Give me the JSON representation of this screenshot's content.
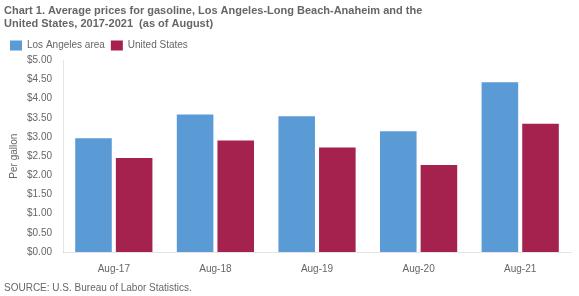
{
  "chart_data": {
    "type": "bar",
    "title": [
      "Chart 1. Average prices for gasoline, Los Angeles-Long Beach-Anaheim and the",
      "United States, 2017-2021  (as of August)"
    ],
    "ylabel": "Per gallon",
    "annotations": [
      "SOURCE: U.S. Bureau of Labor Statistics."
    ],
    "categories": [
      "Aug-17",
      "Aug-18",
      "Aug-19",
      "Aug-20",
      "Aug-21"
    ],
    "series": [
      {
        "name": "Los Angeles area",
        "color": "#5B9BD5",
        "values": [
          2.97,
          3.59,
          3.54,
          3.15,
          4.43
        ]
      },
      {
        "name": "United States",
        "color": "#A5214E",
        "values": [
          2.45,
          2.91,
          2.73,
          2.27,
          3.35
        ]
      }
    ],
    "ylim": [
      0,
      5.0
    ],
    "yticks": [
      {
        "value": 0.0,
        "label": "$0.00"
      },
      {
        "value": 0.5,
        "label": "$0.50"
      },
      {
        "value": 1.0,
        "label": "$1.00"
      },
      {
        "value": 1.5,
        "label": "$1.50"
      },
      {
        "value": 2.0,
        "label": "$2.00"
      },
      {
        "value": 2.5,
        "label": "$2.50"
      },
      {
        "value": 3.0,
        "label": "$3.00"
      },
      {
        "value": 3.5,
        "label": "$3.50"
      },
      {
        "value": 4.0,
        "label": "$4.00"
      },
      {
        "value": 4.5,
        "label": "$4.50"
      },
      {
        "value": 5.0,
        "label": "$5.00"
      }
    ],
    "grid": false,
    "legend": "upper left"
  }
}
